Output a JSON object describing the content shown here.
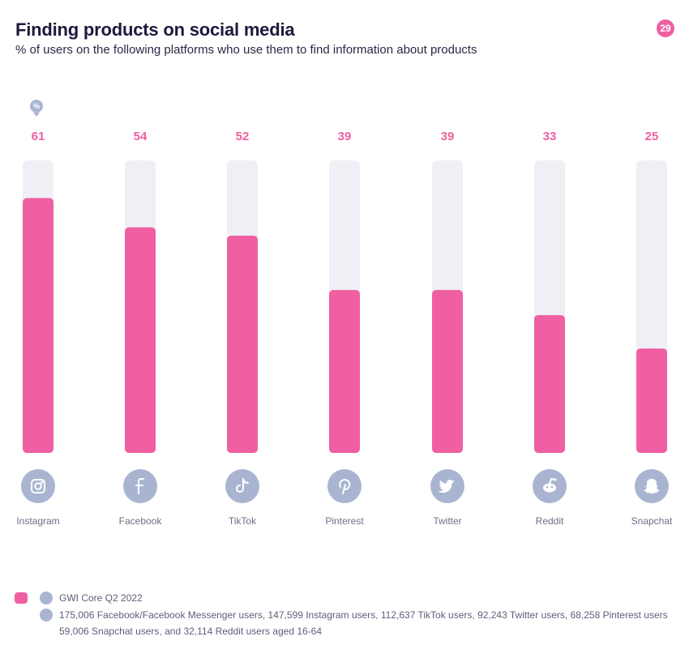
{
  "page_number": "29",
  "unit_symbol": "%",
  "colors": {
    "bar": "#ef5fa2",
    "track": "#eff0f5",
    "value_label": "#ef5fa2",
    "icon_bg": "#a9b5d0"
  },
  "chart_data": {
    "type": "bar",
    "title": "Finding products on social media",
    "subtitle": "% of users on the following platforms who use them to find information about products",
    "categories": [
      "Instagram",
      "Facebook",
      "TikTok",
      "Pinterest",
      "Twitter",
      "Reddit",
      "Snapchat"
    ],
    "values": [
      61,
      54,
      52,
      39,
      39,
      33,
      25
    ],
    "icons": [
      "instagram-icon",
      "facebook-icon",
      "tiktok-icon",
      "pinterest-icon",
      "twitter-icon",
      "reddit-icon",
      "snapchat-icon"
    ],
    "ylim": [
      0,
      70
    ],
    "grid": false
  },
  "footer": {
    "source": "GWI Core Q2 2022",
    "base_line1": "175,006 Facebook/Facebook Messenger users, 147,599 Instagram users, 112,637 TikTok users, 92,243 Twitter users, 68,258 Pinterest users",
    "base_line2": "59,006 Snapchat users, and 32,114 Reddit users aged 16-64"
  }
}
